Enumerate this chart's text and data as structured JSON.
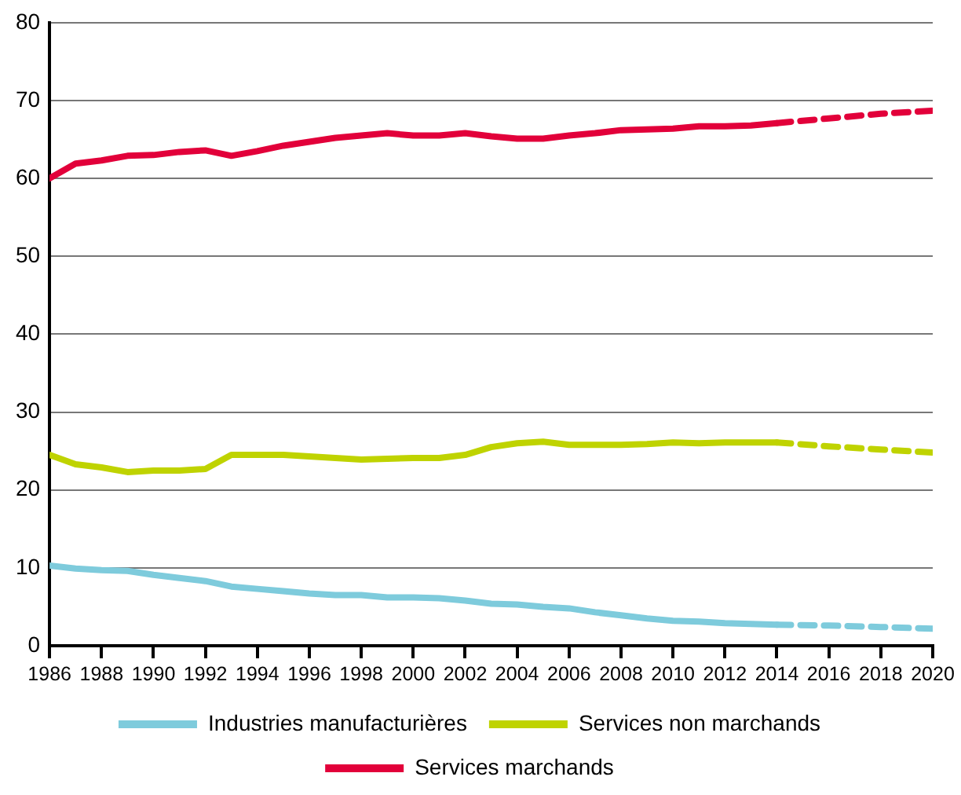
{
  "chart_data": {
    "type": "line",
    "x": [
      1986,
      1987,
      1988,
      1989,
      1990,
      1991,
      1992,
      1993,
      1994,
      1995,
      1996,
      1997,
      1998,
      1999,
      2000,
      2001,
      2002,
      2003,
      2004,
      2005,
      2006,
      2007,
      2008,
      2009,
      2010,
      2011,
      2012,
      2013,
      2014
    ],
    "series": [
      {
        "name": "Industries manufacturières",
        "color": "#7ecbdc",
        "line_style": "solid",
        "values": [
          10.3,
          9.9,
          9.7,
          9.6,
          9.1,
          8.7,
          8.3,
          7.6,
          7.3,
          7.0,
          6.7,
          6.5,
          6.5,
          6.2,
          6.2,
          6.1,
          5.8,
          5.4,
          5.3,
          5.0,
          4.8,
          4.3,
          3.9,
          3.5,
          3.2,
          3.1,
          2.9,
          2.8,
          2.7
        ]
      },
      {
        "name": "Services non marchands",
        "color": "#bfd300",
        "line_style": "solid",
        "values": [
          24.5,
          23.3,
          22.9,
          22.3,
          22.5,
          22.5,
          22.7,
          24.5,
          24.5,
          24.5,
          24.3,
          24.1,
          23.9,
          24.0,
          24.1,
          24.1,
          24.5,
          25.5,
          26.0,
          26.2,
          25.8,
          25.8,
          25.8,
          25.9,
          26.1,
          26.0,
          26.1,
          26.1,
          26.1
        ]
      },
      {
        "name": "Services marchands",
        "color": "#e2003a",
        "line_style": "solid",
        "values": [
          60.0,
          61.9,
          62.3,
          62.9,
          63.0,
          63.4,
          63.6,
          62.9,
          63.5,
          64.2,
          64.7,
          65.2,
          65.5,
          65.8,
          65.5,
          65.5,
          65.8,
          65.4,
          65.1,
          65.1,
          65.5,
          65.8,
          66.2,
          66.3,
          66.4,
          66.7,
          66.7,
          66.8,
          67.1
        ]
      },
      {
        "color": "#7ecbdc",
        "line_style": "dashed",
        "x": [
          2014,
          2016,
          2018,
          2020
        ],
        "values": [
          2.7,
          2.6,
          2.4,
          2.2
        ]
      },
      {
        "color": "#bfd300",
        "line_style": "dashed",
        "x": [
          2014,
          2016,
          2018,
          2020
        ],
        "values": [
          26.1,
          25.6,
          25.2,
          24.8
        ]
      },
      {
        "color": "#e2003a",
        "line_style": "dashed",
        "x": [
          2014,
          2016,
          2018,
          2020
        ],
        "values": [
          67.1,
          67.7,
          68.3,
          68.7
        ]
      }
    ],
    "xlim": [
      1986,
      2020
    ],
    "xticks": [
      1986,
      1988,
      1990,
      1992,
      1994,
      1996,
      1998,
      2000,
      2002,
      2004,
      2006,
      2008,
      2010,
      2012,
      2014,
      2016,
      2018,
      2020
    ],
    "ylim": [
      0,
      80
    ],
    "yticks": [
      0,
      10,
      20,
      30,
      40,
      50,
      60,
      70,
      80
    ],
    "grid": "y",
    "legend": "bottom",
    "marker": "none"
  }
}
